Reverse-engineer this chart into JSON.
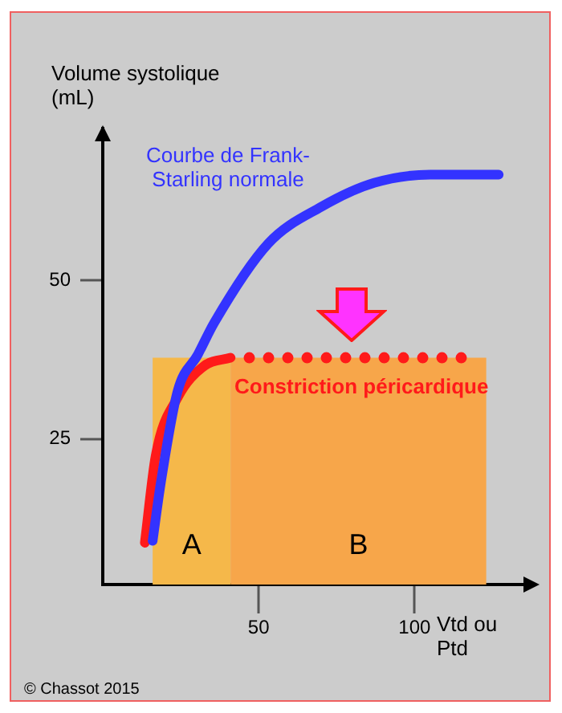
{
  "chart_data": {
    "type": "line",
    "xlabel": "Vtd ou Ptd",
    "ylabel": "Volume systolique (mL)",
    "xlim": [
      0,
      137
    ],
    "ylim": [
      2,
      74
    ],
    "xticks": [
      50,
      100
    ],
    "yticks": [
      25,
      50
    ],
    "marker": "none",
    "series": [
      {
        "name": "Courbe de Frank-Starling normale",
        "color": "#3333ff",
        "x": [
          16,
          18.6,
          24,
          30.5,
          35.7,
          53,
          70,
          87,
          105,
          127
        ],
        "values": [
          8.9,
          18,
          32.5,
          38.3,
          43.3,
          55.8,
          61.6,
          65.4,
          66.7,
          66.7
        ]
      },
      {
        "name": "Constriction péricardique",
        "color": "#ff1a1a",
        "x": [
          13.5,
          17,
          24,
          32.5,
          41
        ],
        "values": [
          8.6,
          22.4,
          31.5,
          36.5,
          37.8
        ]
      },
      {
        "color": "#ff1a1a",
        "line_style": "dotted",
        "x": [
          47,
          118
        ],
        "values": [
          37.8,
          37.8
        ]
      }
    ],
    "bands": [
      {
        "axis": "x",
        "from": 16,
        "to": 41,
        "label": "A",
        "color": "#f5b84a"
      },
      {
        "axis": "x",
        "from": 41,
        "to": 123,
        "label": "B",
        "color": "#f7a64a"
      }
    ],
    "annotations": [
      "© Chassot 2015"
    ]
  }
}
